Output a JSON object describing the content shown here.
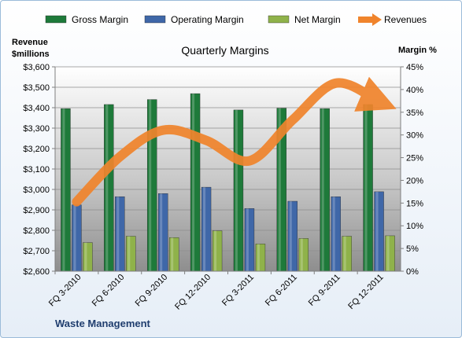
{
  "chart_data": {
    "type": "bar",
    "title": "Quarterly Margins",
    "company": "Waste Management",
    "y_left_label": [
      "Revenue",
      "$millions"
    ],
    "y_right_label": "Margin %",
    "categories": [
      "FQ 3-2010",
      "FQ 6-2010",
      "FQ 9-2010",
      "FQ 12-2010",
      "FQ 3-2011",
      "FQ 6-2011",
      "FQ 9-2011",
      "FQ 12-2011"
    ],
    "left_axis": {
      "min": 2600,
      "max": 3600,
      "step": 100,
      "format": "dollar"
    },
    "right_axis": {
      "min": 0,
      "max": 45,
      "step": 5,
      "format": "percent"
    },
    "series": [
      {
        "name": "Gross Margin",
        "type": "bar",
        "axis": "right",
        "color": "#1e7a3a",
        "values": [
          35.8,
          36.7,
          37.8,
          39.1,
          35.5,
          35.9,
          35.8,
          36.7
        ]
      },
      {
        "name": "Operating Margin",
        "type": "bar",
        "axis": "right",
        "color": "#3f67a8",
        "values": [
          14.6,
          16.4,
          17.1,
          18.5,
          13.8,
          15.4,
          16.4,
          17.5
        ]
      },
      {
        "name": "Net Margin",
        "type": "bar",
        "axis": "right",
        "color": "#8fb24a",
        "values": [
          6.3,
          7.7,
          7.4,
          8.9,
          6.0,
          7.2,
          7.7,
          7.8
        ]
      },
      {
        "name": "Revenues",
        "type": "line",
        "axis": "left",
        "color": "#f0842c",
        "values": [
          2940,
          3160,
          3290,
          3240,
          3140,
          3340,
          3520,
          3430
        ]
      }
    ],
    "legend_position": "top",
    "grid": true
  }
}
